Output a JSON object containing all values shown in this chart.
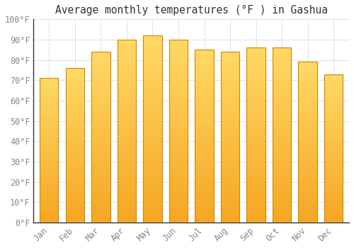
{
  "title": "Average monthly temperatures (°F ) in Gashua",
  "months": [
    "Jan",
    "Feb",
    "Mar",
    "Apr",
    "May",
    "Jun",
    "Jul",
    "Aug",
    "Sep",
    "Oct",
    "Nov",
    "Dec"
  ],
  "values": [
    71,
    76,
    84,
    90,
    92,
    90,
    85,
    84,
    86,
    86,
    79,
    73
  ],
  "bar_color_bottom": "#F5A623",
  "bar_color_top": "#FFD966",
  "bar_edge_color": "#CC8800",
  "ylim": [
    0,
    100
  ],
  "ytick_step": 10,
  "background_color": "#FFFFFF",
  "grid_color": "#DDDDDD",
  "title_fontsize": 10.5,
  "tick_fontsize": 8.5,
  "font_family": "monospace",
  "tick_color": "#888888",
  "title_color": "#333333",
  "bar_width": 0.72
}
